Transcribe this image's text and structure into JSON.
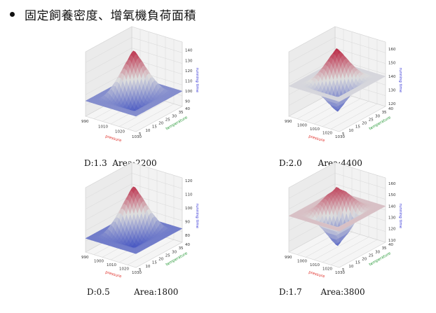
{
  "heading": "固定飼養密度、增氧機負荷面積",
  "axis_labels": {
    "x": "pressure",
    "y": "temperature",
    "z": "running time"
  },
  "colors": {
    "x_label": "#e0302a",
    "y_label": "#2a9a3a",
    "z_label": "#3a3ad8"
  },
  "chart_data": [
    {
      "type": "surface3d",
      "caption": {
        "d": "D:1.3",
        "area": "Area:2200"
      },
      "x_ticks": [
        990,
        1010,
        1020,
        1030
      ],
      "y_ticks": [
        5,
        10,
        15,
        20,
        25,
        30,
        35,
        40
      ],
      "z_ticks": [
        90,
        100,
        110,
        120,
        130,
        140
      ],
      "zlim": [
        85,
        148
      ],
      "base_level": 100,
      "plateau_level": 145,
      "valley_level": 87
    },
    {
      "type": "surface3d",
      "caption": {
        "d": "D:2.0",
        "area": "Area:4400"
      },
      "x_ticks": [
        990,
        1000,
        1010,
        1020,
        1030
      ],
      "y_ticks": [
        5,
        10,
        15,
        20,
        25,
        30,
        35,
        40
      ],
      "z_ticks": [
        120,
        130,
        140,
        150,
        160
      ],
      "zlim": [
        118,
        165
      ],
      "base_level": 140,
      "plateau_level": 163,
      "valley_level": 119
    },
    {
      "type": "surface3d",
      "caption": {
        "d": "D:0.5",
        "area": "Area:1800"
      },
      "x_ticks": [
        990,
        1000,
        1010,
        1020,
        1030
      ],
      "y_ticks": [
        5,
        10,
        15,
        20,
        25,
        30,
        35,
        40
      ],
      "z_ticks": [
        80,
        90,
        100,
        110,
        120
      ],
      "zlim": [
        75,
        122
      ],
      "base_level": 85,
      "plateau_level": 120,
      "valley_level": 78
    },
    {
      "type": "surface3d",
      "caption": {
        "d": "D:1.7",
        "area": "Area:3800"
      },
      "x_ticks": [
        990,
        1000,
        1010,
        1020,
        1030
      ],
      "y_ticks": [
        5,
        10,
        15,
        20,
        25,
        30,
        35,
        40
      ],
      "z_ticks": [
        110,
        120,
        130,
        140,
        150,
        160
      ],
      "zlim": [
        108,
        165
      ],
      "base_level": 140,
      "plateau_level": 163,
      "valley_level": 110
    }
  ]
}
